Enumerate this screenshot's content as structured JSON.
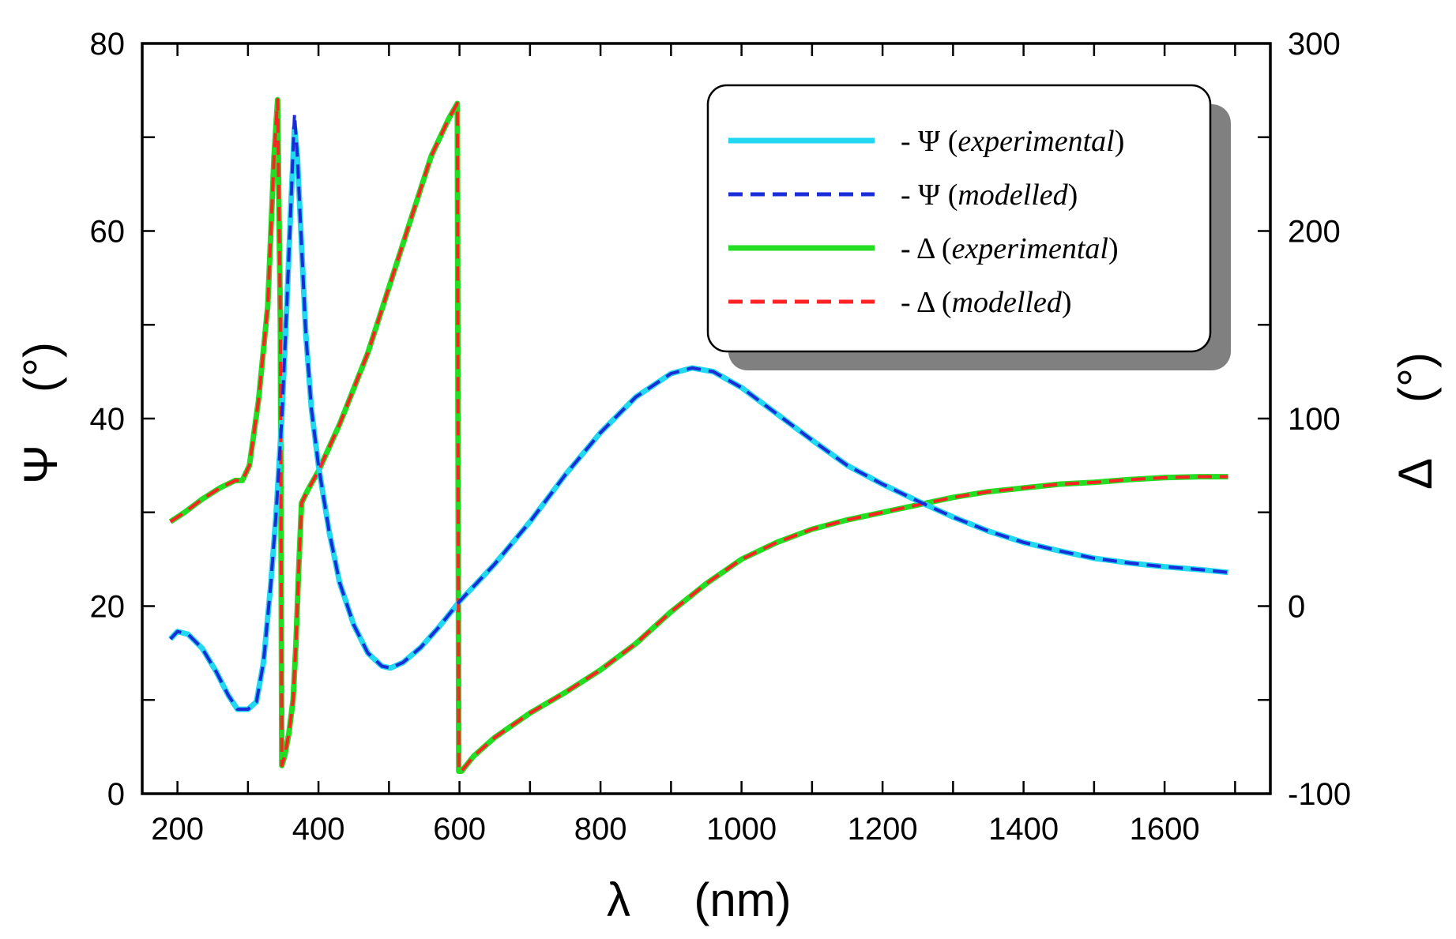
{
  "chart_data": {
    "type": "line",
    "xlabel_symbol": "λ",
    "xlabel_unit": "(nm)",
    "ylabel_left_symbol": "Ψ",
    "ylabel_left_unit": "(°)",
    "ylabel_right_symbol": "Δ",
    "ylabel_right_unit": "(°)",
    "xlim": [
      150,
      1750
    ],
    "ylim_left": [
      0,
      80
    ],
    "ylim_right": [
      -100,
      300
    ],
    "x_ticks": [
      "200",
      "400",
      "600",
      "800",
      "1000",
      "1200",
      "1400",
      "1600"
    ],
    "y_left_ticks": [
      "0",
      "20",
      "40",
      "60",
      "80"
    ],
    "y_right_ticks": [
      "-100",
      "0",
      "100",
      "200",
      "300"
    ],
    "legend_location": "top-right",
    "series": [
      {
        "name": "Ψ (experimental)",
        "symbol": "Ψ",
        "note": "experimental",
        "axis": "left",
        "style": "solid",
        "color": "#22d8f0",
        "points": [
          [
            190,
            16.5
          ],
          [
            200,
            17.3
          ],
          [
            215,
            17.0
          ],
          [
            235,
            15.5
          ],
          [
            255,
            13.0
          ],
          [
            272,
            10.5
          ],
          [
            285,
            9.0
          ],
          [
            300,
            9.0
          ],
          [
            312,
            9.8
          ],
          [
            322,
            14.0
          ],
          [
            332,
            22.0
          ],
          [
            340,
            30.0
          ],
          [
            348,
            40.0
          ],
          [
            355,
            52.0
          ],
          [
            361,
            63.0
          ],
          [
            366,
            71.0
          ],
          [
            370,
            68.0
          ],
          [
            375,
            60.0
          ],
          [
            382,
            49.0
          ],
          [
            390,
            41.0
          ],
          [
            400,
            35.0
          ],
          [
            415,
            28.0
          ],
          [
            430,
            22.5
          ],
          [
            450,
            18.0
          ],
          [
            470,
            15.0
          ],
          [
            490,
            13.6
          ],
          [
            502,
            13.4
          ],
          [
            520,
            14.0
          ],
          [
            545,
            15.6
          ],
          [
            570,
            17.7
          ],
          [
            600,
            20.5
          ],
          [
            650,
            24.5
          ],
          [
            700,
            29.0
          ],
          [
            750,
            34.0
          ],
          [
            800,
            38.5
          ],
          [
            850,
            42.3
          ],
          [
            900,
            44.8
          ],
          [
            930,
            45.4
          ],
          [
            960,
            45.0
          ],
          [
            1000,
            43.3
          ],
          [
            1050,
            40.5
          ],
          [
            1100,
            37.7
          ],
          [
            1150,
            35.0
          ],
          [
            1200,
            33.0
          ],
          [
            1250,
            31.2
          ],
          [
            1300,
            29.5
          ],
          [
            1350,
            28.0
          ],
          [
            1400,
            26.8
          ],
          [
            1450,
            25.9
          ],
          [
            1500,
            25.1
          ],
          [
            1550,
            24.6
          ],
          [
            1600,
            24.2
          ],
          [
            1650,
            23.9
          ],
          [
            1690,
            23.6
          ]
        ]
      },
      {
        "name": "Ψ (modelled)",
        "symbol": "Ψ",
        "note": "modelled",
        "axis": "left",
        "style": "dashed",
        "color": "#1a2bd8",
        "points": [
          [
            190,
            16.5
          ],
          [
            200,
            17.3
          ],
          [
            215,
            17.0
          ],
          [
            235,
            15.5
          ],
          [
            255,
            13.0
          ],
          [
            272,
            10.5
          ],
          [
            285,
            9.0
          ],
          [
            300,
            9.0
          ],
          [
            312,
            9.8
          ],
          [
            322,
            14.0
          ],
          [
            332,
            22.0
          ],
          [
            340,
            30.0
          ],
          [
            348,
            40.0
          ],
          [
            355,
            52.0
          ],
          [
            361,
            63.0
          ],
          [
            366,
            72.5
          ],
          [
            370,
            68.0
          ],
          [
            375,
            60.0
          ],
          [
            382,
            49.0
          ],
          [
            390,
            41.0
          ],
          [
            400,
            35.0
          ],
          [
            415,
            28.0
          ],
          [
            430,
            22.5
          ],
          [
            450,
            18.0
          ],
          [
            470,
            15.0
          ],
          [
            490,
            13.6
          ],
          [
            502,
            13.4
          ],
          [
            520,
            14.0
          ],
          [
            545,
            15.6
          ],
          [
            570,
            17.7
          ],
          [
            600,
            20.5
          ],
          [
            650,
            24.5
          ],
          [
            700,
            29.0
          ],
          [
            750,
            34.0
          ],
          [
            800,
            38.5
          ],
          [
            850,
            42.3
          ],
          [
            900,
            44.8
          ],
          [
            930,
            45.4
          ],
          [
            960,
            45.0
          ],
          [
            1000,
            43.3
          ],
          [
            1050,
            40.5
          ],
          [
            1100,
            37.7
          ],
          [
            1150,
            35.0
          ],
          [
            1200,
            33.0
          ],
          [
            1250,
            31.2
          ],
          [
            1300,
            29.5
          ],
          [
            1350,
            28.0
          ],
          [
            1400,
            26.8
          ],
          [
            1450,
            25.9
          ],
          [
            1500,
            25.1
          ],
          [
            1550,
            24.6
          ],
          [
            1600,
            24.2
          ],
          [
            1650,
            23.9
          ],
          [
            1690,
            23.6
          ]
        ]
      },
      {
        "name": "Δ (experimental)",
        "symbol": "Δ",
        "note": "experimental",
        "axis": "right",
        "style": "solid",
        "color": "#22dd22",
        "points": [
          [
            190,
            45
          ],
          [
            210,
            50
          ],
          [
            235,
            57
          ],
          [
            260,
            63
          ],
          [
            282,
            67
          ],
          [
            292,
            67
          ],
          [
            302,
            75
          ],
          [
            315,
            110
          ],
          [
            328,
            160
          ],
          [
            337,
            240
          ],
          [
            342,
            270
          ],
          [
            346,
            150
          ],
          [
            348,
            -85
          ],
          [
            352,
            -80
          ],
          [
            358,
            -68
          ],
          [
            364,
            -50
          ],
          [
            368,
            -20
          ],
          [
            372,
            20
          ],
          [
            376,
            55
          ],
          [
            385,
            62
          ],
          [
            400,
            72
          ],
          [
            430,
            97
          ],
          [
            470,
            135
          ],
          [
            500,
            170
          ],
          [
            530,
            205
          ],
          [
            560,
            240
          ],
          [
            585,
            260
          ],
          [
            597,
            268
          ],
          [
            599,
            -88
          ],
          [
            603,
            -88
          ],
          [
            620,
            -80
          ],
          [
            650,
            -70
          ],
          [
            700,
            -57
          ],
          [
            750,
            -46
          ],
          [
            800,
            -34
          ],
          [
            850,
            -20
          ],
          [
            900,
            -3
          ],
          [
            950,
            12
          ],
          [
            1000,
            25
          ],
          [
            1050,
            34
          ],
          [
            1100,
            41
          ],
          [
            1150,
            46
          ],
          [
            1200,
            50
          ],
          [
            1250,
            54
          ],
          [
            1300,
            58
          ],
          [
            1350,
            61
          ],
          [
            1400,
            63
          ],
          [
            1450,
            65
          ],
          [
            1500,
            66
          ],
          [
            1550,
            67.5
          ],
          [
            1600,
            68.5
          ],
          [
            1650,
            69
          ],
          [
            1690,
            69
          ]
        ]
      },
      {
        "name": "Δ (modelled)",
        "symbol": "Δ",
        "note": "modelled",
        "axis": "right",
        "style": "dashed",
        "color": "#ff2222",
        "points": [
          [
            190,
            45
          ],
          [
            210,
            50
          ],
          [
            235,
            57
          ],
          [
            260,
            63
          ],
          [
            282,
            67
          ],
          [
            292,
            67
          ],
          [
            302,
            75
          ],
          [
            315,
            110
          ],
          [
            328,
            160
          ],
          [
            337,
            240
          ],
          [
            342,
            270
          ],
          [
            346,
            150
          ],
          [
            348,
            -85
          ],
          [
            352,
            -80
          ],
          [
            358,
            -68
          ],
          [
            364,
            -50
          ],
          [
            368,
            -20
          ],
          [
            372,
            20
          ],
          [
            376,
            55
          ],
          [
            385,
            62
          ],
          [
            400,
            72
          ],
          [
            430,
            97
          ],
          [
            470,
            135
          ],
          [
            500,
            170
          ],
          [
            530,
            205
          ],
          [
            560,
            240
          ],
          [
            585,
            260
          ],
          [
            597,
            268
          ],
          [
            599,
            -88
          ],
          [
            603,
            -88
          ],
          [
            620,
            -80
          ],
          [
            650,
            -70
          ],
          [
            700,
            -57
          ],
          [
            750,
            -46
          ],
          [
            800,
            -34
          ],
          [
            850,
            -20
          ],
          [
            900,
            -3
          ],
          [
            950,
            12
          ],
          [
            1000,
            25
          ],
          [
            1050,
            34
          ],
          [
            1100,
            41
          ],
          [
            1150,
            46
          ],
          [
            1200,
            50
          ],
          [
            1250,
            54
          ],
          [
            1300,
            58
          ],
          [
            1350,
            61
          ],
          [
            1400,
            63
          ],
          [
            1450,
            65
          ],
          [
            1500,
            66
          ],
          [
            1550,
            67.5
          ],
          [
            1600,
            68.5
          ],
          [
            1650,
            69
          ],
          [
            1690,
            69
          ]
        ]
      }
    ]
  }
}
